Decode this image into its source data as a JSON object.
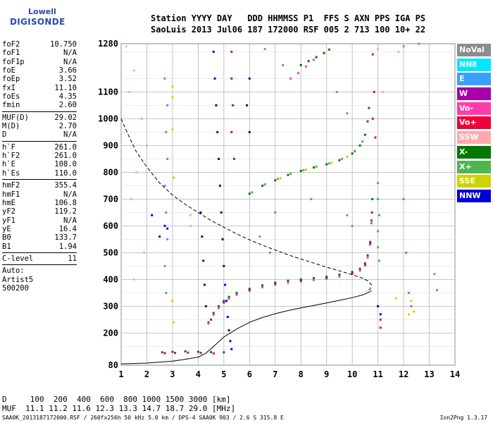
{
  "logo": {
    "line1": "Lowell",
    "line2": "DIGISONDE"
  },
  "header": {
    "row1": "Station YYYY DAY   DDD HHMMSS P1  FFS S AXN PPS IGA PS",
    "row2": "SaoLuis 2013 Jul06 187 172000 RSF 005 2 713 100 10+ 22"
  },
  "params": {
    "group1": [
      {
        "label": "foF2",
        "value": "10.750"
      },
      {
        "label": "foF1",
        "value": "N/A"
      },
      {
        "label": "foF1p",
        "value": "N/A"
      },
      {
        "label": "foE",
        "value": "3.66"
      },
      {
        "label": "foEp",
        "value": "3.52"
      },
      {
        "label": "fxI",
        "value": "11.10"
      },
      {
        "label": "foEs",
        "value": "4.35"
      },
      {
        "label": "fmin",
        "value": "2.60"
      }
    ],
    "group2": [
      {
        "label": "MUF(D)",
        "value": "29.02"
      },
      {
        "label": "M(D)",
        "value": "2.70"
      },
      {
        "label": "D",
        "value": "N/A"
      }
    ],
    "group3": [
      {
        "label": "h`F",
        "value": "261.0"
      },
      {
        "label": "h`F2",
        "value": "261.0"
      },
      {
        "label": "h`E",
        "value": "108.0"
      },
      {
        "label": "h`Es",
        "value": "110.0"
      }
    ],
    "group4": [
      {
        "label": "hmF2",
        "value": "355.4"
      },
      {
        "label": "hmF1",
        "value": "N/A"
      },
      {
        "label": "hmE",
        "value": "106.8"
      },
      {
        "label": "yF2",
        "value": "119.2"
      },
      {
        "label": "yF1",
        "value": "N/A"
      },
      {
        "label": "yE",
        "value": "16.4"
      },
      {
        "label": "B0",
        "value": "133.7"
      },
      {
        "label": "B1",
        "value": "1.94"
      }
    ],
    "group5": [
      {
        "label": "C-level",
        "value": "11"
      }
    ],
    "auto": [
      "Auto:",
      "Artist5",
      "500200"
    ]
  },
  "legend": [
    {
      "label": "NoVal",
      "color": "#8c8c8c"
    },
    {
      "label": "NNE",
      "color": "#00e8ff"
    },
    {
      "label": "E",
      "color": "#3aa0ff"
    },
    {
      "label": "W",
      "color": "#a800a8"
    },
    {
      "label": "Vo-",
      "color": "#ff3caa"
    },
    {
      "label": "Vo+",
      "color": "#f0003c"
    },
    {
      "label": "SSW",
      "color": "#ffaaaa"
    },
    {
      "label": "X-",
      "color": "#007800"
    },
    {
      "label": "X+",
      "color": "#50b450"
    },
    {
      "label": "SSE",
      "color": "#d2d200"
    },
    {
      "label": "NNW",
      "color": "#0000d2"
    }
  ],
  "muf_table": {
    "row1": "D     100  200  400  600  800 1000 1500 3000 [km]",
    "row2": "MUF  11.1 11.2 11.6 12.3 13.3 14.7 18.7 29.0 [MHz]"
  },
  "footer": "SAA0K_2013187172000.RSF / 260fx256h 50 kHz 5.0 km / DPS-4 SAA0K 903 / 2.6 S 315.8 E",
  "version": "Ion2Png 1.3.17",
  "chart_data": {
    "type": "scatter",
    "x_range": [
      1,
      14
    ],
    "y_range": [
      80,
      1280
    ],
    "x_ticks": [
      1,
      2,
      3,
      4,
      5,
      6,
      7,
      8,
      9,
      10,
      11,
      12,
      13,
      14
    ],
    "y_ticks": [
      80,
      200,
      300,
      400,
      500,
      600,
      700,
      800,
      900,
      1000,
      1100,
      1280
    ],
    "grid": true,
    "legend_position": "right",
    "series": [
      {
        "color": "#007800",
        "points": [
          [
            4.4,
            240
          ],
          [
            4.6,
            275
          ],
          [
            4.8,
            300
          ],
          [
            5.0,
            320
          ],
          [
            5.2,
            335
          ],
          [
            5.5,
            350
          ],
          [
            6.0,
            365
          ],
          [
            6.5,
            378
          ],
          [
            7.0,
            388
          ],
          [
            7.5,
            395
          ],
          [
            8.0,
            400
          ],
          [
            8.5,
            405
          ],
          [
            9.0,
            410
          ],
          [
            9.5,
            418
          ],
          [
            10.0,
            428
          ],
          [
            10.3,
            440
          ],
          [
            10.5,
            460
          ],
          [
            10.6,
            490
          ],
          [
            10.7,
            540
          ],
          [
            10.75,
            620
          ],
          [
            10.78,
            700
          ]
        ]
      },
      {
        "color": "#ff3caa",
        "points": [
          [
            4.4,
            235
          ],
          [
            4.6,
            268
          ],
          [
            4.8,
            293
          ],
          [
            5.0,
            313
          ],
          [
            5.2,
            328
          ],
          [
            5.5,
            343
          ],
          [
            6.0,
            358
          ],
          [
            6.5,
            371
          ],
          [
            7.0,
            381
          ],
          [
            7.5,
            388
          ],
          [
            8.0,
            393
          ],
          [
            8.5,
            398
          ],
          [
            9.0,
            403
          ],
          [
            9.5,
            411
          ],
          [
            10.0,
            421
          ],
          [
            10.3,
            433
          ],
          [
            10.5,
            452
          ],
          [
            10.6,
            482
          ],
          [
            10.7,
            530
          ],
          [
            10.75,
            610
          ]
        ]
      },
      {
        "color": "#a800a8",
        "points": [
          [
            4.5,
            250
          ],
          [
            5.0,
            316
          ],
          [
            6.0,
            361
          ],
          [
            7.0,
            384
          ],
          [
            8.0,
            396
          ],
          [
            9.0,
            406
          ],
          [
            10.0,
            424
          ],
          [
            10.5,
            456
          ],
          [
            10.7,
            536
          ],
          [
            10.77,
            650
          ]
        ]
      },
      {
        "color": "#007800",
        "points": [
          [
            6.0,
            720
          ],
          [
            6.5,
            750
          ],
          [
            7.0,
            770
          ],
          [
            7.5,
            790
          ],
          [
            8.0,
            805
          ],
          [
            8.5,
            818
          ],
          [
            9.0,
            830
          ],
          [
            9.5,
            845
          ],
          [
            10.0,
            870
          ],
          [
            10.3,
            900
          ],
          [
            10.5,
            940
          ],
          [
            10.6,
            990
          ],
          [
            10.65,
            1040
          ]
        ]
      },
      {
        "color": "#50b450",
        "points": [
          [
            6.1,
            725
          ],
          [
            6.6,
            755
          ],
          [
            7.1,
            775
          ],
          [
            7.6,
            795
          ],
          [
            8.1,
            808
          ],
          [
            8.6,
            821
          ],
          [
            9.1,
            833
          ],
          [
            9.6,
            850
          ],
          [
            10.1,
            878
          ],
          [
            10.4,
            915
          ]
        ]
      },
      {
        "color": "#d2d200",
        "points": [
          [
            7.2,
            778
          ],
          [
            8.2,
            810
          ],
          [
            9.2,
            835
          ],
          [
            9.8,
            858
          ]
        ]
      },
      {
        "color": "#007800",
        "points": [
          [
            8.0,
            1200
          ],
          [
            8.3,
            1215
          ],
          [
            8.6,
            1230
          ],
          [
            8.9,
            1245
          ],
          [
            9.1,
            1258
          ]
        ]
      },
      {
        "color": "#ff3caa",
        "points": [
          [
            7.6,
            1150
          ],
          [
            7.9,
            1170
          ],
          [
            8.2,
            1195
          ],
          [
            8.5,
            1220
          ]
        ]
      },
      {
        "color": "#007800",
        "points": [
          [
            2.6,
            128
          ],
          [
            3.0,
            130
          ],
          [
            3.5,
            132
          ],
          [
            4.0,
            130
          ],
          [
            4.5,
            129
          ],
          [
            5.0,
            128
          ]
        ]
      },
      {
        "color": "#f0003c",
        "points": [
          [
            2.7,
            125
          ],
          [
            3.1,
            126
          ],
          [
            3.6,
            127
          ],
          [
            4.1,
            126
          ],
          [
            4.6,
            124
          ]
        ]
      },
      {
        "color": "#0000d2",
        "points": [
          [
            4.6,
            1250
          ],
          [
            4.65,
            1150
          ],
          [
            4.7,
            1050
          ],
          [
            4.75,
            950
          ],
          [
            4.8,
            850
          ],
          [
            4.85,
            750
          ],
          [
            4.9,
            650
          ],
          [
            4.95,
            550
          ],
          [
            5.0,
            450
          ],
          [
            5.05,
            380
          ],
          [
            5.1,
            320
          ],
          [
            5.15,
            260
          ],
          [
            5.2,
            210
          ],
          [
            5.25,
            170
          ],
          [
            5.3,
            140
          ]
        ]
      },
      {
        "color": "#0000d2",
        "points": [
          [
            4.1,
            650
          ],
          [
            4.15,
            560
          ],
          [
            4.2,
            470
          ],
          [
            4.25,
            380
          ],
          [
            4.3,
            300
          ]
        ]
      },
      {
        "color": "#3aa0ff",
        "points": [
          [
            2.7,
            1150
          ],
          [
            2.8,
            1050
          ],
          [
            2.75,
            950
          ],
          [
            2.8,
            850
          ],
          [
            2.7,
            750
          ],
          [
            2.75,
            650
          ],
          [
            2.8,
            550
          ],
          [
            2.7,
            450
          ],
          [
            2.75,
            350
          ]
        ]
      },
      {
        "color": "#d2d200",
        "points": [
          [
            3.0,
            1120
          ],
          [
            3.0,
            1080
          ],
          [
            3.0,
            960
          ],
          [
            3.05,
            780
          ],
          [
            3.0,
            320
          ],
          [
            3.05,
            240
          ]
        ]
      },
      {
        "color": "#a800a8",
        "points": [
          [
            5.3,
            1250
          ],
          [
            5.3,
            1150
          ],
          [
            5.35,
            1050
          ],
          [
            5.3,
            950
          ],
          [
            5.4,
            850
          ]
        ]
      },
      {
        "color": "#0000d2",
        "points": [
          [
            2.2,
            640
          ],
          [
            2.5,
            560
          ],
          [
            2.7,
            600
          ],
          [
            2.8,
            590
          ]
        ]
      },
      {
        "color": "#ffaaaa",
        "points": [
          [
            1.2,
            1270
          ],
          [
            1.5,
            1180
          ],
          [
            1.3,
            1100
          ],
          [
            1.8,
            1000
          ],
          [
            2.0,
            900
          ],
          [
            1.6,
            800
          ],
          [
            1.4,
            700
          ],
          [
            1.9,
            500
          ],
          [
            1.5,
            400
          ],
          [
            3.7,
            600
          ],
          [
            3.7,
            640
          ],
          [
            11.0,
            1260
          ],
          [
            11.2,
            1100
          ],
          [
            11.8,
            1250
          ]
        ]
      },
      {
        "color": "#50b450",
        "points": [
          [
            11.0,
            760
          ],
          [
            11.0,
            700
          ],
          [
            11.05,
            640
          ],
          [
            11.0,
            580
          ],
          [
            11.0,
            520
          ],
          [
            11.05,
            470
          ]
        ]
      },
      {
        "color": "#f0003c",
        "points": [
          [
            10.8,
            1240
          ],
          [
            10.85,
            1100
          ],
          [
            10.8,
            1000
          ],
          [
            10.9,
            930
          ],
          [
            11.1,
            250
          ],
          [
            11.1,
            220
          ]
        ]
      },
      {
        "color": "#ff3caa",
        "points": [
          [
            12.0,
            700
          ],
          [
            12.1,
            500
          ],
          [
            12.2,
            350
          ],
          [
            12.3,
            300
          ]
        ]
      },
      {
        "color": "#d2d200",
        "points": [
          [
            11.7,
            330
          ],
          [
            12.3,
            320
          ],
          [
            12.2,
            270
          ],
          [
            12.4,
            280
          ]
        ]
      },
      {
        "color": "#3aa0ff",
        "points": [
          [
            13.2,
            420
          ],
          [
            13.3,
            360
          ],
          [
            12.6,
            1280
          ],
          [
            12.0,
            1270
          ]
        ]
      },
      {
        "color": "#0000d2",
        "points": [
          [
            6.0,
            1150
          ],
          [
            5.9,
            1050
          ],
          [
            6.0,
            950
          ],
          [
            11.0,
            300
          ],
          [
            11.1,
            270
          ]
        ]
      },
      {
        "color": "#8c8c8c",
        "points": [
          [
            6.6,
            1260
          ],
          [
            7.3,
            1200
          ],
          [
            9.4,
            1100
          ],
          [
            9.8,
            1020
          ],
          [
            10.1,
            880
          ],
          [
            8.4,
            700
          ],
          [
            7.0,
            650
          ],
          [
            9.8,
            640
          ],
          [
            10.0,
            600
          ],
          [
            6.4,
            560
          ],
          [
            6.8,
            500
          ]
        ]
      }
    ],
    "profile_solid": {
      "color": "#000000",
      "points": [
        [
          1.0,
          85
        ],
        [
          2.0,
          88
        ],
        [
          3.0,
          95
        ],
        [
          3.5,
          102
        ],
        [
          4.0,
          110
        ],
        [
          4.3,
          125
        ],
        [
          4.6,
          150
        ],
        [
          5.0,
          185
        ],
        [
          5.5,
          215
        ],
        [
          6.0,
          240
        ],
        [
          6.5,
          258
        ],
        [
          7.0,
          272
        ],
        [
          7.5,
          284
        ],
        [
          8.0,
          294
        ],
        [
          8.5,
          303
        ],
        [
          9.0,
          312
        ],
        [
          9.5,
          322
        ],
        [
          10.0,
          332
        ],
        [
          10.4,
          342
        ],
        [
          10.6,
          350
        ],
        [
          10.75,
          358
        ]
      ]
    },
    "profile_dashed": {
      "color": "#000000",
      "points": [
        [
          1.0,
          1000
        ],
        [
          1.3,
          935
        ],
        [
          1.6,
          875
        ],
        [
          2.0,
          820
        ],
        [
          2.5,
          760
        ],
        [
          3.0,
          715
        ],
        [
          3.5,
          680
        ],
        [
          4.0,
          650
        ],
        [
          4.5,
          620
        ],
        [
          5.0,
          595
        ],
        [
          5.5,
          570
        ],
        [
          6.0,
          548
        ],
        [
          6.5,
          528
        ],
        [
          7.0,
          510
        ],
        [
          7.5,
          492
        ],
        [
          8.0,
          476
        ],
        [
          8.5,
          461
        ],
        [
          9.0,
          446
        ],
        [
          9.5,
          432
        ],
        [
          10.0,
          418
        ],
        [
          10.4,
          405
        ],
        [
          10.6,
          395
        ],
        [
          10.75,
          380
        ],
        [
          10.7,
          365
        ],
        [
          10.55,
          355
        ]
      ]
    }
  }
}
